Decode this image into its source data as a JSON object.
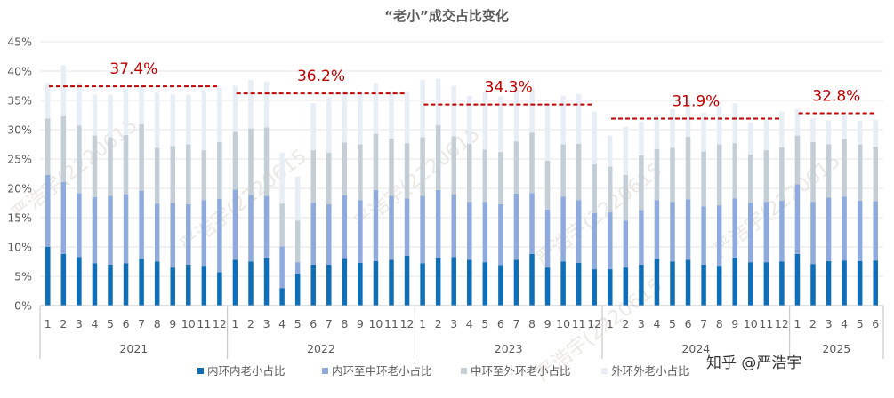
{
  "chart_data": {
    "type": "bar",
    "stacked": true,
    "title": "“老小”成交占比变化",
    "ylim": [
      0,
      45
    ],
    "yticks": [
      "0%",
      "5%",
      "10%",
      "15%",
      "20%",
      "25%",
      "30%",
      "35%",
      "40%",
      "45%"
    ],
    "colors": [
      "#0e6eb8",
      "#8faadc",
      "#c3ced6",
      "#e8eef6"
    ],
    "series": [
      {
        "name": "内环内老小占比",
        "color": "#0e6eb8",
        "values": [
          10.0,
          8.8,
          8.3,
          7.2,
          7.0,
          7.2,
          8.0,
          7.5,
          6.5,
          7.0,
          6.8,
          5.7,
          7.8,
          7.5,
          8.2,
          3.0,
          5.5,
          7.0,
          7.0,
          8.1,
          7.3,
          7.6,
          7.8,
          8.5,
          7.2,
          8.2,
          8.3,
          7.8,
          7.4,
          6.9,
          7.8,
          8.8,
          6.5,
          7.5,
          7.3,
          6.2,
          6.2,
          6.5,
          7.0,
          8.0,
          7.5,
          7.8,
          7.0,
          6.8,
          8.2,
          7.4,
          7.4,
          7.5,
          8.8,
          7.1,
          7.6,
          7.7,
          7.6,
          7.7
        ]
      },
      {
        "name": "内环至中环老小占比",
        "color": "#8faadc",
        "values": [
          12.3,
          12.3,
          10.9,
          11.3,
          11.7,
          11.8,
          11.6,
          9.9,
          11.0,
          10.3,
          11.2,
          12.5,
          12.0,
          11.4,
          10.5,
          7.1,
          1.9,
          10.5,
          10.3,
          10.7,
          10.7,
          12.1,
          10.9,
          9.8,
          11.5,
          11.5,
          10.7,
          9.9,
          10.3,
          10.4,
          11.3,
          10.4,
          9.9,
          11.1,
          10.7,
          9.6,
          9.7,
          8.0,
          9.3,
          10.0,
          10.2,
          10.3,
          9.9,
          10.3,
          10.1,
          10.1,
          10.3,
          10.4,
          11.9,
          10.6,
          10.8,
          10.9,
          10.3,
          10.1
        ]
      },
      {
        "name": "中环至外环老小占比",
        "color": "#c3ced6",
        "values": [
          9.6,
          11.2,
          11.5,
          10.5,
          10.0,
          10.1,
          11.3,
          9.5,
          9.7,
          10.2,
          8.5,
          9.7,
          9.8,
          11.3,
          11.7,
          7.3,
          7.1,
          9.0,
          8.8,
          9.0,
          9.5,
          9.6,
          9.8,
          9.4,
          10.0,
          11.1,
          9.9,
          9.9,
          8.9,
          8.9,
          8.9,
          10.3,
          8.3,
          8.9,
          9.6,
          8.3,
          7.8,
          7.8,
          9.3,
          8.7,
          9.2,
          10.7,
          9.4,
          10.4,
          9.4,
          8.3,
          8.8,
          9.1,
          8.3,
          10.2,
          9.1,
          9.8,
          9.6,
          9.3
        ]
      },
      {
        "name": "外环外老小占比",
        "color": "#e8eef6",
        "values": [
          6.1,
          8.7,
          7.3,
          7.0,
          7.3,
          7.9,
          6.3,
          9.4,
          8.8,
          8.5,
          10.2,
          9.2,
          7.9,
          8.3,
          7.8,
          8.7,
          7.5,
          8.0,
          9.4,
          8.8,
          9.0,
          8.7,
          8.0,
          8.8,
          9.8,
          7.9,
          8.6,
          8.2,
          9.8,
          9.5,
          8.8,
          7.5,
          9.6,
          8.3,
          8.5,
          9.0,
          5.3,
          8.2,
          5.8,
          5.8,
          6.6,
          6.2,
          6.6,
          6.5,
          6.8,
          5.5,
          5.3,
          6.1,
          4.5,
          4.0,
          4.1,
          4.0,
          4.0,
          4.6
        ]
      }
    ],
    "x_months": [
      "1",
      "2",
      "3",
      "4",
      "5",
      "6",
      "7",
      "8",
      "9",
      "10",
      "11",
      "12",
      "1",
      "2",
      "3",
      "4",
      "5",
      "6",
      "7",
      "8",
      "9",
      "10",
      "11",
      "12",
      "1",
      "2",
      "3",
      "4",
      "5",
      "6",
      "7",
      "8",
      "9",
      "10",
      "11",
      "12",
      "1",
      "2",
      "3",
      "4",
      "5",
      "6",
      "7",
      "8",
      "9",
      "10",
      "11",
      "12",
      "1",
      "2",
      "3",
      "4",
      "5",
      "6"
    ],
    "year_groups": [
      {
        "year": "2021",
        "count": 12,
        "average_label": "37.4%",
        "average": 37.4
      },
      {
        "year": "2022",
        "count": 12,
        "average_label": "36.2%",
        "average": 36.2
      },
      {
        "year": "2023",
        "count": 12,
        "average_label": "34.3%",
        "average": 34.3
      },
      {
        "year": "2024",
        "count": 12,
        "average_label": "31.9%",
        "average": 31.9
      },
      {
        "year": "2025",
        "count": 6,
        "average_label": "32.8%",
        "average": 32.8
      }
    ],
    "legend_position": "bottom"
  },
  "watermark": {
    "text": "知乎 @严浩宇",
    "background_text": "严浩宇(2220615"
  }
}
